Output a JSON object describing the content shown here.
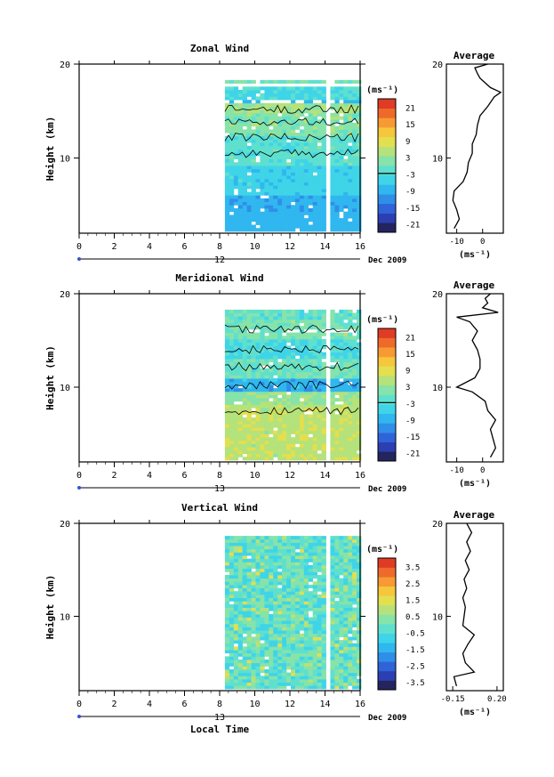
{
  "chart_data": [
    {
      "type": "heatmap",
      "title": "Zonal Wind",
      "ylabel": "Height (km)",
      "y_ticks": [
        "20",
        "10"
      ],
      "ylim": [
        2,
        20
      ],
      "x_ticks": [
        "0",
        "2",
        "4",
        "6",
        "8",
        "10",
        "12",
        "14",
        "16"
      ],
      "xlim": [
        0,
        16
      ],
      "date_marker": "12",
      "date_label": "Dec 2009",
      "data_start": 8.3,
      "colorbar": {
        "unit": "(ms⁻¹)",
        "ticks": [
          "21",
          "15",
          "9",
          "3",
          "-3",
          "-9",
          "-15",
          "-21"
        ],
        "range": [
          -24,
          24
        ]
      },
      "profile": {
        "title": "Average",
        "xlabel": "(ms⁻¹)",
        "x_ticks": [
          "-10",
          "0"
        ],
        "xlim": [
          -14,
          8
        ],
        "y_ticks": [
          "20",
          "10"
        ],
        "points": [
          [
            -11,
            2.5
          ],
          [
            -9,
            3.5
          ],
          [
            -10,
            4.5
          ],
          [
            -11.5,
            5.5
          ],
          [
            -11,
            6.5
          ],
          [
            -7.5,
            7.5
          ],
          [
            -6,
            8.5
          ],
          [
            -5.5,
            9.5
          ],
          [
            -4,
            10.5
          ],
          [
            -4,
            11.5
          ],
          [
            -2.5,
            12.5
          ],
          [
            -2,
            13.5
          ],
          [
            -1,
            14.5
          ],
          [
            2,
            15.5
          ],
          [
            4.5,
            16.5
          ],
          [
            7,
            17
          ],
          [
            3,
            17.5
          ],
          [
            -1,
            18.5
          ],
          [
            -2,
            19
          ],
          [
            -3,
            19.6
          ],
          [
            2,
            20
          ]
        ]
      }
    },
    {
      "type": "heatmap",
      "title": "Meridional Wind",
      "ylabel": "Height (km)",
      "y_ticks": [
        "20",
        "10"
      ],
      "ylim": [
        2,
        20
      ],
      "x_ticks": [
        "0",
        "2",
        "4",
        "6",
        "8",
        "10",
        "12",
        "14",
        "16"
      ],
      "xlim": [
        0,
        16
      ],
      "date_marker": "13",
      "date_label": "Dec 2009",
      "data_start": 8.3,
      "colorbar": {
        "unit": "(ms⁻¹)",
        "ticks": [
          "21",
          "15",
          "9",
          "3",
          "-3",
          "-9",
          "-15",
          "-21"
        ],
        "range": [
          -24,
          24
        ]
      },
      "profile": {
        "title": "Average",
        "xlabel": "(ms⁻¹)",
        "x_ticks": [
          "-10",
          "0"
        ],
        "xlim": [
          -14,
          8
        ],
        "y_ticks": [
          "20",
          "10"
        ],
        "points": [
          [
            3,
            2.5
          ],
          [
            5,
            3.5
          ],
          [
            4,
            4.5
          ],
          [
            3,
            5.5
          ],
          [
            5,
            6.5
          ],
          [
            2,
            7.5
          ],
          [
            1,
            8.5
          ],
          [
            -4,
            9.5
          ],
          [
            -10,
            10
          ],
          [
            -3,
            11
          ],
          [
            -1,
            12
          ],
          [
            -1,
            13
          ],
          [
            -2,
            14
          ],
          [
            -4,
            15
          ],
          [
            -2,
            16
          ],
          [
            -5,
            17
          ],
          [
            -10,
            17.5
          ],
          [
            6,
            18
          ],
          [
            0,
            18.5
          ],
          [
            2,
            19
          ],
          [
            1,
            19.5
          ],
          [
            3,
            20
          ]
        ]
      }
    },
    {
      "type": "heatmap",
      "title": "Vertical Wind",
      "ylabel": "Height (km)",
      "y_ticks": [
        "20",
        "10"
      ],
      "ylim": [
        2,
        20
      ],
      "x_ticks": [
        "0",
        "2",
        "4",
        "6",
        "8",
        "10",
        "12",
        "14",
        "16"
      ],
      "xlim": [
        0,
        16
      ],
      "date_marker": "13",
      "date_label": "Dec 2009",
      "xlabel": "Local Time",
      "data_start": 8.3,
      "colorbar": {
        "unit": "(ms⁻¹)",
        "ticks": [
          "3.5",
          "2.5",
          "1.5",
          "0.5",
          "-0.5",
          "-1.5",
          "-2.5",
          "-3.5"
        ],
        "range": [
          -4,
          4
        ]
      },
      "profile": {
        "title": "Average",
        "xlabel": "(ms⁻¹)",
        "x_ticks": [
          "-0.15",
          "0.20"
        ],
        "xlim": [
          -0.2,
          0.25
        ],
        "y_ticks": [
          "20",
          "10"
        ],
        "points": [
          [
            -0.12,
            2.5
          ],
          [
            -0.14,
            3.5
          ],
          [
            0.02,
            4
          ],
          [
            -0.05,
            5
          ],
          [
            -0.07,
            6
          ],
          [
            -0.03,
            7
          ],
          [
            0.02,
            8
          ],
          [
            -0.07,
            9
          ],
          [
            -0.06,
            10
          ],
          [
            -0.05,
            11
          ],
          [
            -0.07,
            12
          ],
          [
            -0.04,
            13
          ],
          [
            -0.06,
            14
          ],
          [
            -0.02,
            15
          ],
          [
            -0.05,
            16
          ],
          [
            -0.01,
            17
          ],
          [
            -0.04,
            18
          ],
          [
            0,
            19
          ],
          [
            -0.04,
            20
          ]
        ]
      }
    }
  ]
}
